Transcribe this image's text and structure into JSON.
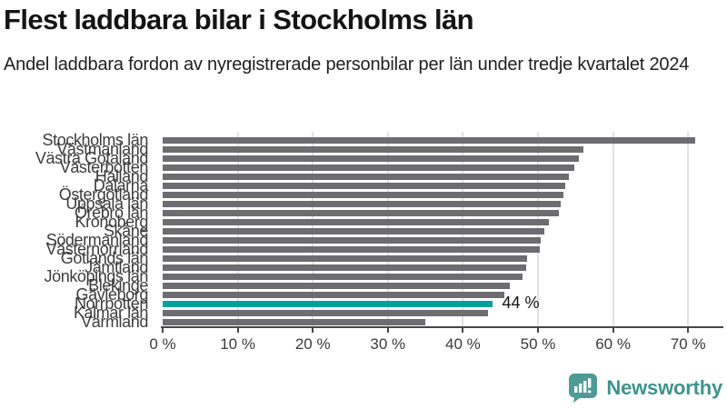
{
  "title": "Flest laddbara bilar i Stockholms län",
  "subtitle": "Andel laddbara fordon av nyregistrerade personbilar per län under tredje kvartalet 2024",
  "logo": {
    "text": "Newsworthy",
    "icon": "bar-chart-speech-bubble-icon"
  },
  "colors": {
    "bar": "#6c6c71",
    "highlight": "#00a19b",
    "axis": "#474747",
    "grid": "#e2e2e2",
    "logo_teal": "#4d9b94",
    "logo_text": "#3f938c"
  },
  "chart_data": {
    "type": "bar",
    "orientation": "horizontal",
    "title": "Flest laddbara bilar i Stockholms län",
    "subtitle": "Andel laddbara fordon av nyregistrerade personbilar per län under tredje kvartalet 2024",
    "categories": [
      "Stockholms län",
      "Västmanland",
      "Västra Götaland",
      "Västerbotten",
      "Halland",
      "Dalarna",
      "Östergötland",
      "Uppsala län",
      "Örebro län",
      "Kronoberg",
      "Skåne",
      "Södermanland",
      "Västernorrland",
      "Gotlands län",
      "Jämtland",
      "Jönköpings län",
      "Blekinge",
      "Gävleborg",
      "Norrbotten",
      "Kalmar län",
      "Värmland"
    ],
    "values": [
      71,
      56,
      55.4,
      54.8,
      54.1,
      53.6,
      53.4,
      53,
      52.8,
      51.4,
      50.8,
      50.4,
      50.3,
      48.6,
      48.4,
      48,
      46.3,
      45.5,
      44,
      43.3,
      35
    ],
    "unit": "%",
    "highlighted_category": "Norrbotten",
    "highlight_label": "44 %",
    "xlim": [
      0,
      72
    ],
    "x_ticks": [
      0,
      10,
      20,
      30,
      40,
      50,
      60,
      70
    ],
    "x_tick_labels": [
      "0 %",
      "10 %",
      "20 %",
      "30 %",
      "40 %",
      "50 %",
      "60 %",
      "70 %"
    ],
    "xlabel": "",
    "ylabel": "",
    "grid": true,
    "legend": false
  }
}
